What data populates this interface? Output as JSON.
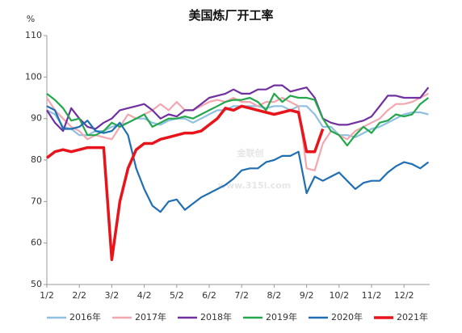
{
  "chart_data": {
    "type": "line",
    "title": "美国炼厂开工率",
    "y_unit": "%",
    "watermark": "金联创",
    "watermark_url": "www.315i.com",
    "categories": [
      "1/2",
      null,
      null,
      null,
      "2/2",
      null,
      null,
      null,
      "3/2",
      null,
      null,
      null,
      "4/2",
      null,
      null,
      null,
      "5/2",
      null,
      null,
      null,
      "6/2",
      null,
      null,
      null,
      "7/2",
      null,
      null,
      null,
      "8/2",
      null,
      null,
      null,
      "9/2",
      null,
      null,
      null,
      "10/2",
      null,
      null,
      null,
      "11/2",
      null,
      null,
      null,
      "12/2",
      null,
      null,
      null
    ],
    "ylim": [
      50,
      110
    ],
    "yticks": [
      50,
      60,
      70,
      80,
      90,
      100,
      110
    ],
    "grid": false,
    "legend": "bottom",
    "series": [
      {
        "name": "2016年",
        "color": "#8fc0e2",
        "values": [
          92,
          91,
          88,
          87.5,
          86,
          86,
          87,
          87,
          88,
          88.5,
          89,
          90,
          90,
          89,
          88.5,
          89.5,
          90,
          90,
          89,
          90,
          91,
          92,
          92,
          93,
          93,
          93,
          93,
          92.5,
          93,
          93,
          92,
          93,
          93,
          91,
          88,
          88,
          86,
          86,
          85.5,
          86.5,
          87.5,
          88,
          89,
          90,
          91,
          91.5,
          91.5,
          91
        ]
      },
      {
        "name": "2017年",
        "color": "#f2a6b0",
        "values": [
          95,
          92,
          90,
          88,
          87,
          85,
          86,
          85.5,
          85,
          88,
          91,
          90,
          91,
          92,
          93.5,
          92,
          94,
          92,
          92,
          93,
          94,
          94.5,
          94,
          95,
          94,
          94,
          93,
          94,
          94,
          95,
          94,
          93,
          78,
          77.5,
          84,
          87,
          86,
          85,
          87,
          88,
          89,
          90,
          92,
          93.5,
          93.5,
          94,
          95,
          96
        ]
      },
      {
        "name": "2018年",
        "color": "#7030a0",
        "values": [
          92,
          89,
          87,
          92.5,
          90,
          88,
          87.5,
          89,
          90,
          92,
          92.5,
          93,
          93.5,
          92,
          90,
          91,
          90.5,
          92,
          92,
          93.5,
          95,
          95.5,
          96,
          97,
          96,
          96,
          97,
          97,
          98,
          98,
          96.5,
          97,
          97.5,
          95,
          90,
          89,
          88.5,
          88.5,
          89,
          89.5,
          90.5,
          93,
          95.5,
          95.5,
          95,
          95,
          95,
          97.5
        ]
      },
      {
        "name": "2019年",
        "color": "#22a84a",
        "values": [
          96,
          94.5,
          92.5,
          89.5,
          90,
          86,
          86,
          87,
          89,
          88,
          89,
          90,
          91,
          88,
          89,
          90,
          90,
          90.5,
          90,
          91,
          92,
          93,
          94,
          94.5,
          94.5,
          95,
          94,
          92,
          96,
          94,
          95.5,
          95,
          95,
          94.5,
          90,
          87,
          86,
          83.5,
          86,
          88,
          86.5,
          89,
          89.5,
          91,
          90.5,
          91,
          93.5,
          95
        ]
      },
      {
        "name": "2020年",
        "color": "#1f6fb2",
        "values": [
          93,
          92,
          87.5,
          87.5,
          88,
          89.5,
          87,
          86.5,
          87,
          89,
          86,
          78,
          73,
          69,
          67.5,
          70,
          70.5,
          68,
          69.5,
          71,
          72,
          73,
          74,
          75.5,
          77.5,
          78,
          78,
          79.5,
          80,
          81,
          81,
          82,
          72,
          76,
          75,
          76,
          77,
          75,
          73,
          74.5,
          75,
          75,
          77,
          78.5,
          79.5,
          79,
          78,
          79.5
        ]
      },
      {
        "name": "2021年",
        "color": "#e8141b",
        "values": [
          80.5,
          82,
          82.5,
          82,
          82.5,
          83,
          83,
          83,
          56,
          70,
          78,
          82.5,
          84,
          84,
          85,
          85.5,
          86,
          86.5,
          86.5,
          87,
          88.5,
          90,
          92.5,
          92,
          93,
          92.5,
          92,
          91.5,
          91,
          91.5,
          92,
          91.5,
          82,
          82,
          87.5,
          null,
          null,
          null,
          null,
          null,
          null,
          null,
          null,
          null,
          null,
          null,
          null,
          null
        ]
      }
    ]
  }
}
